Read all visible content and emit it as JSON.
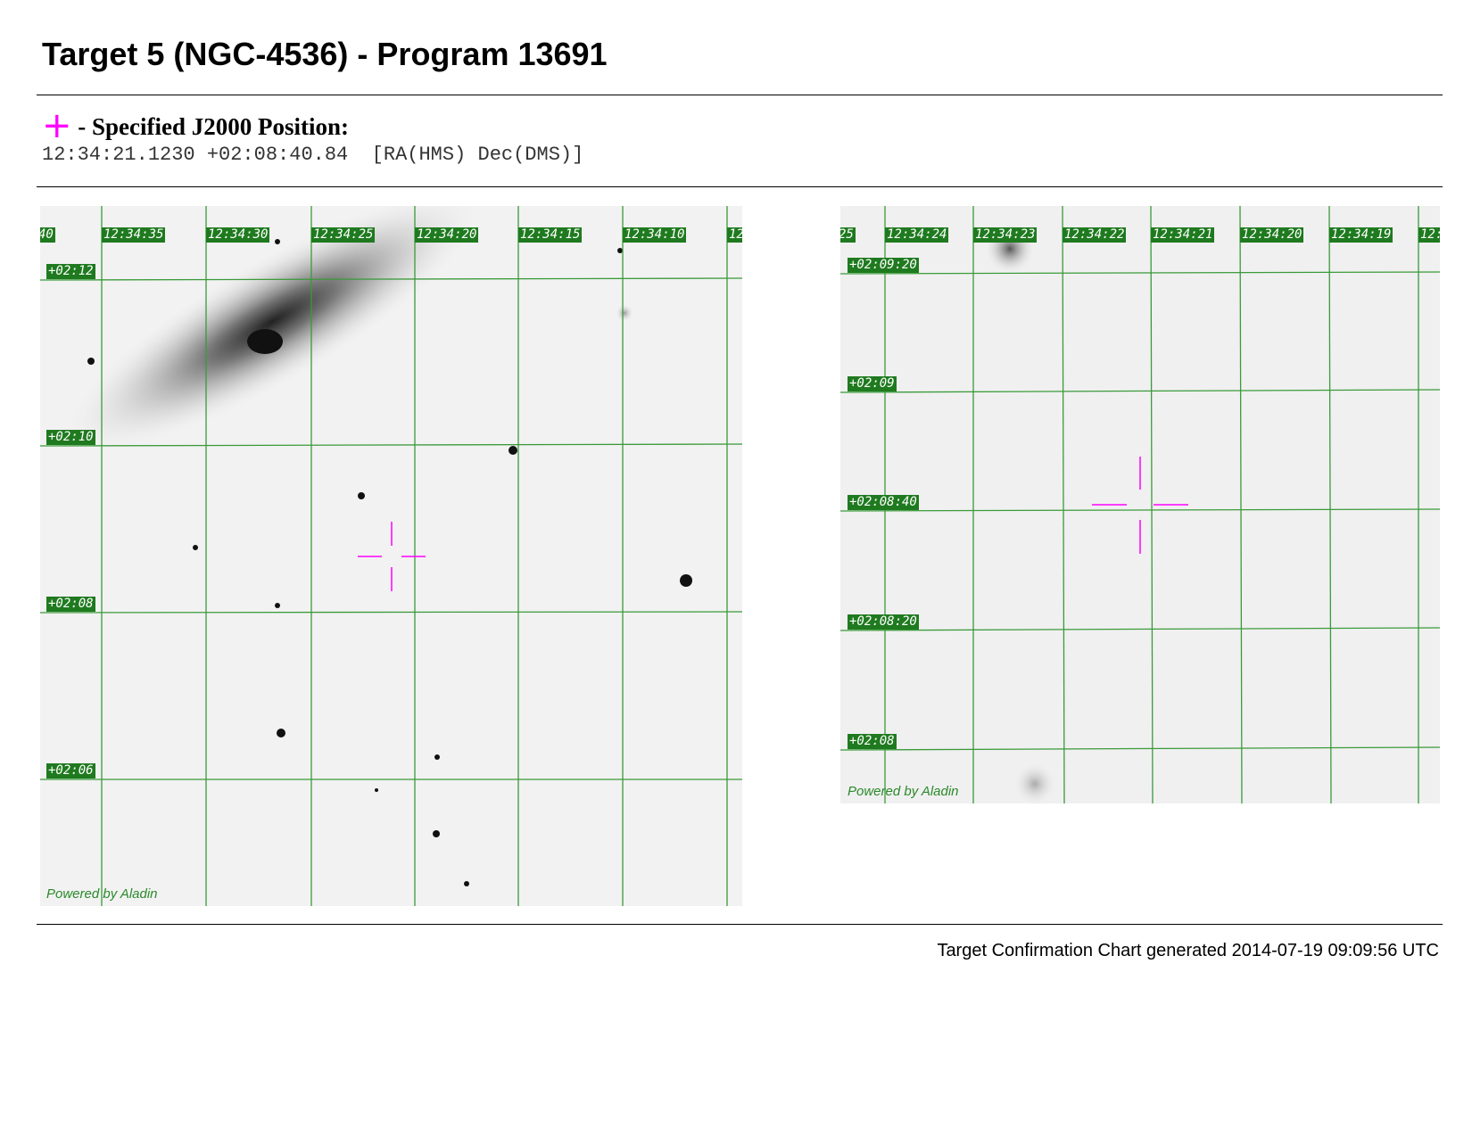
{
  "header": {
    "title": "Target 5 (NGC-4536) - Program 13691"
  },
  "position": {
    "symbol": "+",
    "label": "- Specified J2000 Position:",
    "coords": "12:34:21.1230 +02:08:40.84",
    "format": "[RA(HMS) Dec(DMS)]"
  },
  "left_image": {
    "ra_labels": [
      "40",
      "12:34:35",
      "12:34:30",
      "12:34:25",
      "12:34:20",
      "12:34:15",
      "12:34:10",
      "12"
    ],
    "dec_labels": [
      "+02:12",
      "+02:10",
      "+02:08",
      "+02:06"
    ],
    "credit": "Powered by Aladin"
  },
  "right_image": {
    "ra_labels": [
      "25",
      "12:34:24",
      "12:34:23",
      "12:34:22",
      "12:34:21",
      "12:34:20",
      "12:34:19",
      "12:"
    ],
    "dec_labels": [
      "+02:09:20",
      "+02:09",
      "+02:08:40",
      "+02:08:20",
      "+02:08"
    ],
    "credit": "Powered by Aladin"
  },
  "footer": {
    "text": "Target Confirmation Chart generated 2014-07-19 09:09:56 UTC"
  }
}
